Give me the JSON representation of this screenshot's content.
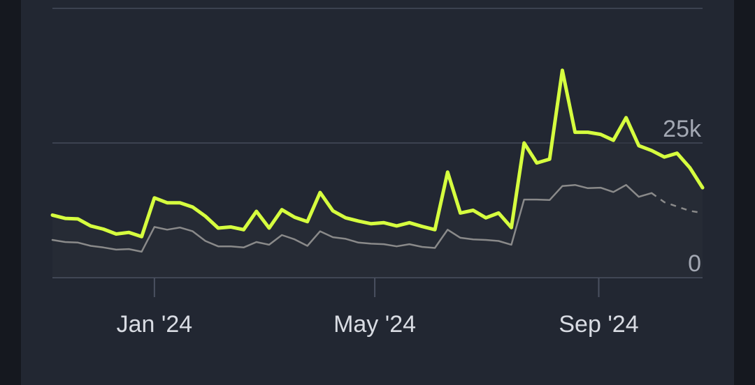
{
  "chart_data": {
    "type": "line",
    "title": "",
    "xlabel": "",
    "ylabel": "",
    "ylim": [
      0,
      50000
    ],
    "grid": true,
    "legend": "none",
    "x_ticks": [
      {
        "date": "2024-01-01",
        "label": "Jan '24"
      },
      {
        "date": "2024-05-01",
        "label": "May '24"
      },
      {
        "date": "2024-09-01",
        "label": "Sep '24"
      }
    ],
    "y_ticks": [
      {
        "value": 0,
        "label": "0"
      },
      {
        "value": 25000,
        "label": "25k"
      }
    ],
    "x": [
      "2023-11-06",
      "2023-11-13",
      "2023-11-20",
      "2023-11-27",
      "2023-12-04",
      "2023-12-11",
      "2023-12-18",
      "2023-12-25",
      "2024-01-01",
      "2024-01-08",
      "2024-01-15",
      "2024-01-22",
      "2024-01-29",
      "2024-02-05",
      "2024-02-12",
      "2024-02-19",
      "2024-02-26",
      "2024-03-04",
      "2024-03-11",
      "2024-03-18",
      "2024-03-25",
      "2024-04-01",
      "2024-04-08",
      "2024-04-15",
      "2024-04-22",
      "2024-04-29",
      "2024-05-06",
      "2024-05-13",
      "2024-05-20",
      "2024-05-27",
      "2024-06-03",
      "2024-06-10",
      "2024-06-17",
      "2024-06-24",
      "2024-07-01",
      "2024-07-08",
      "2024-07-15",
      "2024-07-22",
      "2024-07-29",
      "2024-08-05",
      "2024-08-12",
      "2024-08-19",
      "2024-08-26",
      "2024-09-02",
      "2024-09-09",
      "2024-09-16",
      "2024-09-23",
      "2024-09-30",
      "2024-10-07",
      "2024-10-14",
      "2024-10-21",
      "2024-10-28"
    ],
    "series": [
      {
        "color": "#d6ff3f",
        "values": [
          11600,
          11000,
          10900,
          9600,
          9000,
          8100,
          8400,
          7600,
          14800,
          13900,
          13900,
          13100,
          11400,
          9200,
          9400,
          8900,
          12300,
          9200,
          12600,
          11200,
          10400,
          15800,
          12400,
          11100,
          10500,
          10000,
          10200,
          9600,
          10200,
          9500,
          8900,
          19600,
          12000,
          12500,
          11100,
          12000,
          9300,
          25000,
          21300,
          22000,
          38500,
          27000,
          27000,
          26600,
          25500,
          29700,
          24500,
          23600,
          22400,
          23100,
          20400,
          16700
        ]
      },
      {
        "color": "#8a8a8a",
        "dashed_from": "2024-09-30",
        "values": [
          7000,
          6600,
          6500,
          5900,
          5600,
          5200,
          5300,
          4800,
          9400,
          8900,
          9300,
          8600,
          6800,
          5800,
          5800,
          5600,
          6600,
          6100,
          7900,
          7100,
          5900,
          8600,
          7500,
          7200,
          6500,
          6300,
          6200,
          5800,
          6200,
          5700,
          5500,
          8900,
          7400,
          7100,
          7000,
          6800,
          6100,
          14500,
          14500,
          14400,
          17000,
          17200,
          16600,
          16700,
          15900,
          17200,
          15000,
          15700,
          14000,
          13200,
          12400,
          12000
        ]
      }
    ]
  }
}
